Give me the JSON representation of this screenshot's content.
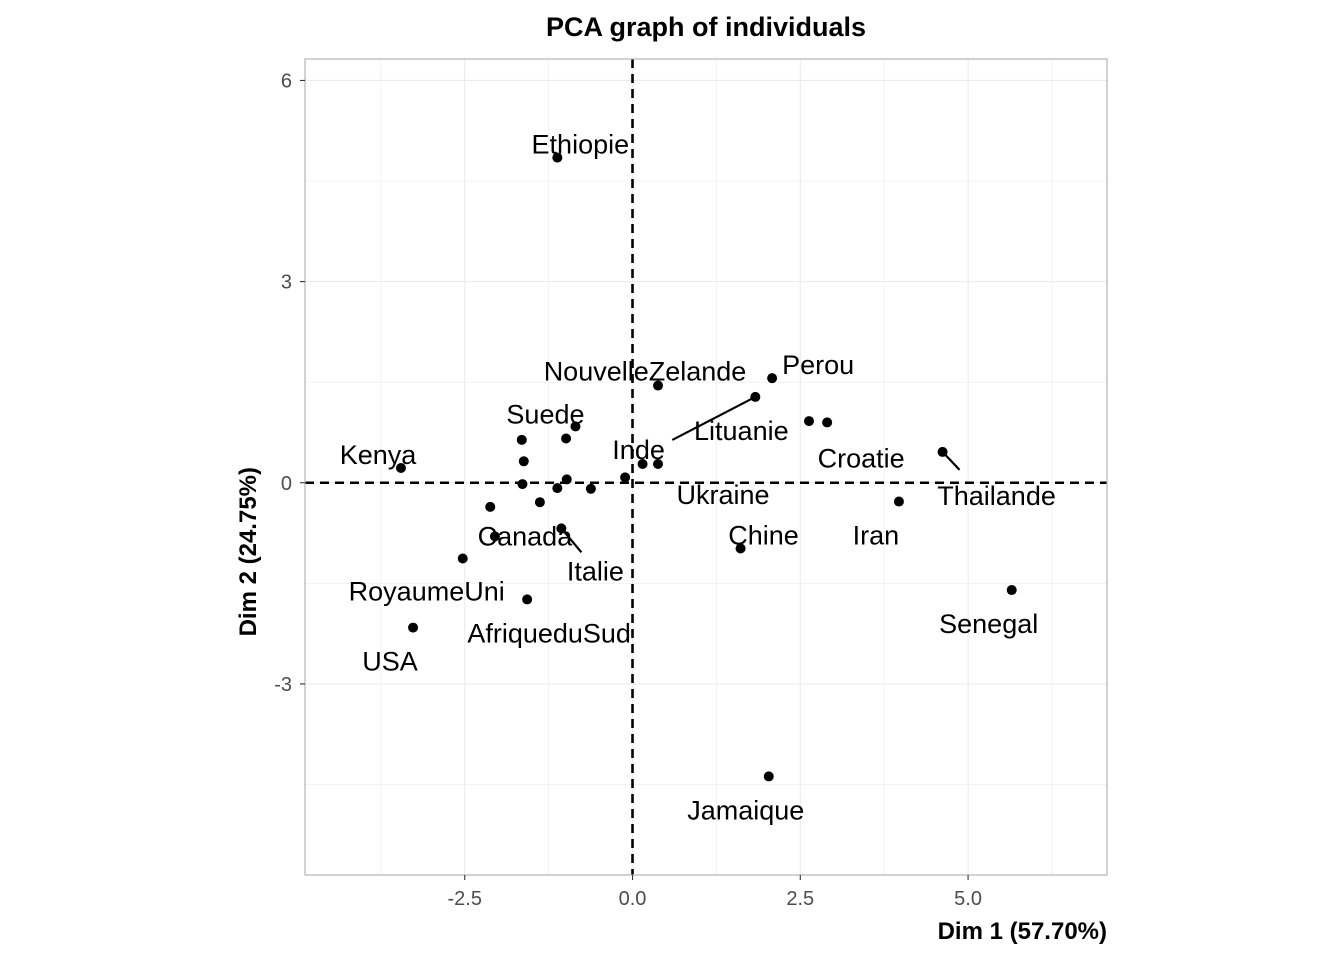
{
  "chart_data": {
    "type": "scatter",
    "title": "PCA graph of individuals",
    "xlabel": "Dim 1 (57.70%)",
    "ylabel": "Dim 2 (24.75%)",
    "xlim": [
      -4.88,
      7.07
    ],
    "ylim": [
      -5.85,
      6.32
    ],
    "x_ticks": [
      {
        "value": -2.5,
        "label": "-2.5"
      },
      {
        "value": 0,
        "label": "0.0"
      },
      {
        "value": 2.5,
        "label": "2.5"
      },
      {
        "value": 5,
        "label": "5.0"
      }
    ],
    "y_ticks": [
      {
        "value": -3,
        "label": "-3"
      },
      {
        "value": 0,
        "label": "0"
      },
      {
        "value": 3,
        "label": "3"
      },
      {
        "value": 6,
        "label": "6"
      }
    ],
    "grid": true,
    "reference_lines": {
      "x": 0,
      "y": 0,
      "style": "dashed"
    },
    "point_color": "#000000",
    "points": [
      {
        "label": "Ethiopie",
        "x": -1.12,
        "y": 4.85
      },
      {
        "label": "Perou",
        "x": 2.08,
        "y": 1.56
      },
      {
        "label": "NouvelleZelande",
        "x": 0.38,
        "y": 1.45
      },
      {
        "label": "Lituanie",
        "x": 1.83,
        "y": 1.28
      },
      {
        "label": "Suede",
        "x": -0.85,
        "y": 0.84
      },
      {
        "label": "Croatie",
        "x": 2.9,
        "y": 0.9
      },
      {
        "label": "Kenya",
        "x": -3.45,
        "y": 0.22
      },
      {
        "label": "Inde",
        "x": 0.15,
        "y": 0.28
      },
      {
        "label": "Thailande",
        "x": 4.62,
        "y": 0.46
      },
      {
        "label": "Ukraine",
        "x": 0.38,
        "y": 0.28
      },
      {
        "label": "Iran",
        "x": 3.97,
        "y": -0.28
      },
      {
        "label": "Canada",
        "x": -2.05,
        "y": -0.8
      },
      {
        "label": "Italie",
        "x": -1.06,
        "y": -0.68
      },
      {
        "label": "Chine",
        "x": 1.61,
        "y": -0.98
      },
      {
        "label": "RoyaumeUni",
        "x": -2.53,
        "y": -1.13
      },
      {
        "label": "AfriqueduSud",
        "x": -1.57,
        "y": -1.74
      },
      {
        "label": "USA",
        "x": -3.27,
        "y": -2.16
      },
      {
        "label": "Senegal",
        "x": 5.65,
        "y": -1.6
      },
      {
        "label": "Jamaique",
        "x": 2.03,
        "y": -4.38
      },
      {
        "label": "",
        "x": -1.65,
        "y": 0.64
      },
      {
        "label": "",
        "x": -0.99,
        "y": 0.66
      },
      {
        "label": "",
        "x": 2.63,
        "y": 0.92
      },
      {
        "label": "",
        "x": -1.62,
        "y": 0.32
      },
      {
        "label": "",
        "x": -1.64,
        "y": -0.02
      },
      {
        "label": "",
        "x": -1.38,
        "y": -0.29
      },
      {
        "label": "",
        "x": -2.12,
        "y": -0.36
      },
      {
        "label": "",
        "x": -1.12,
        "y": -0.08
      },
      {
        "label": "",
        "x": -0.98,
        "y": 0.05
      },
      {
        "label": "",
        "x": -0.62,
        "y": -0.09
      },
      {
        "label": "",
        "x": -0.11,
        "y": 0.08
      }
    ]
  }
}
